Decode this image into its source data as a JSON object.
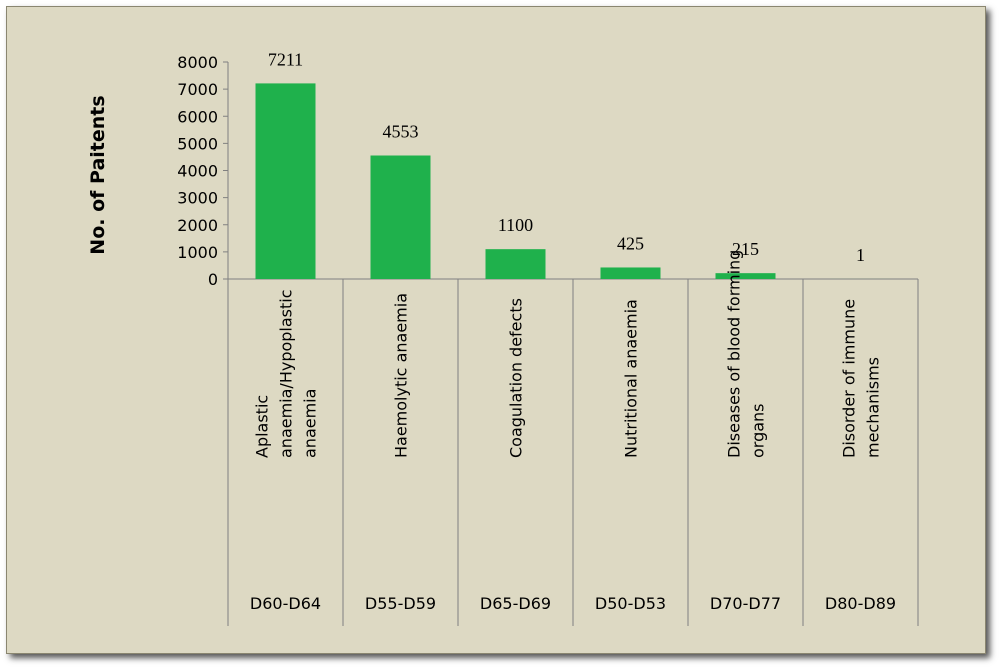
{
  "chart_data": {
    "type": "bar",
    "y_label": "No. of Paitents",
    "categories": [
      "Aplastic anaemia/Hypoplastic anaemia",
      "Haemolytic anaemia",
      "Coagulation defects",
      "Nutritional anaemia",
      "Diseases of blood forming organs",
      "Disorder of immune mechanisms"
    ],
    "category_codes": [
      "D60-D64",
      "D55-D59",
      "D65-D69",
      "D50-D53",
      "D70-D77",
      "D80-D89"
    ],
    "values": [
      7211,
      4553,
      1100,
      425,
      215,
      1
    ],
    "color": "#1fb14c",
    "ylim": [
      0,
      8000
    ],
    "yticks": [
      0,
      1000,
      2000,
      3000,
      4000,
      5000,
      6000,
      7000,
      8000
    ],
    "grid": false
  }
}
